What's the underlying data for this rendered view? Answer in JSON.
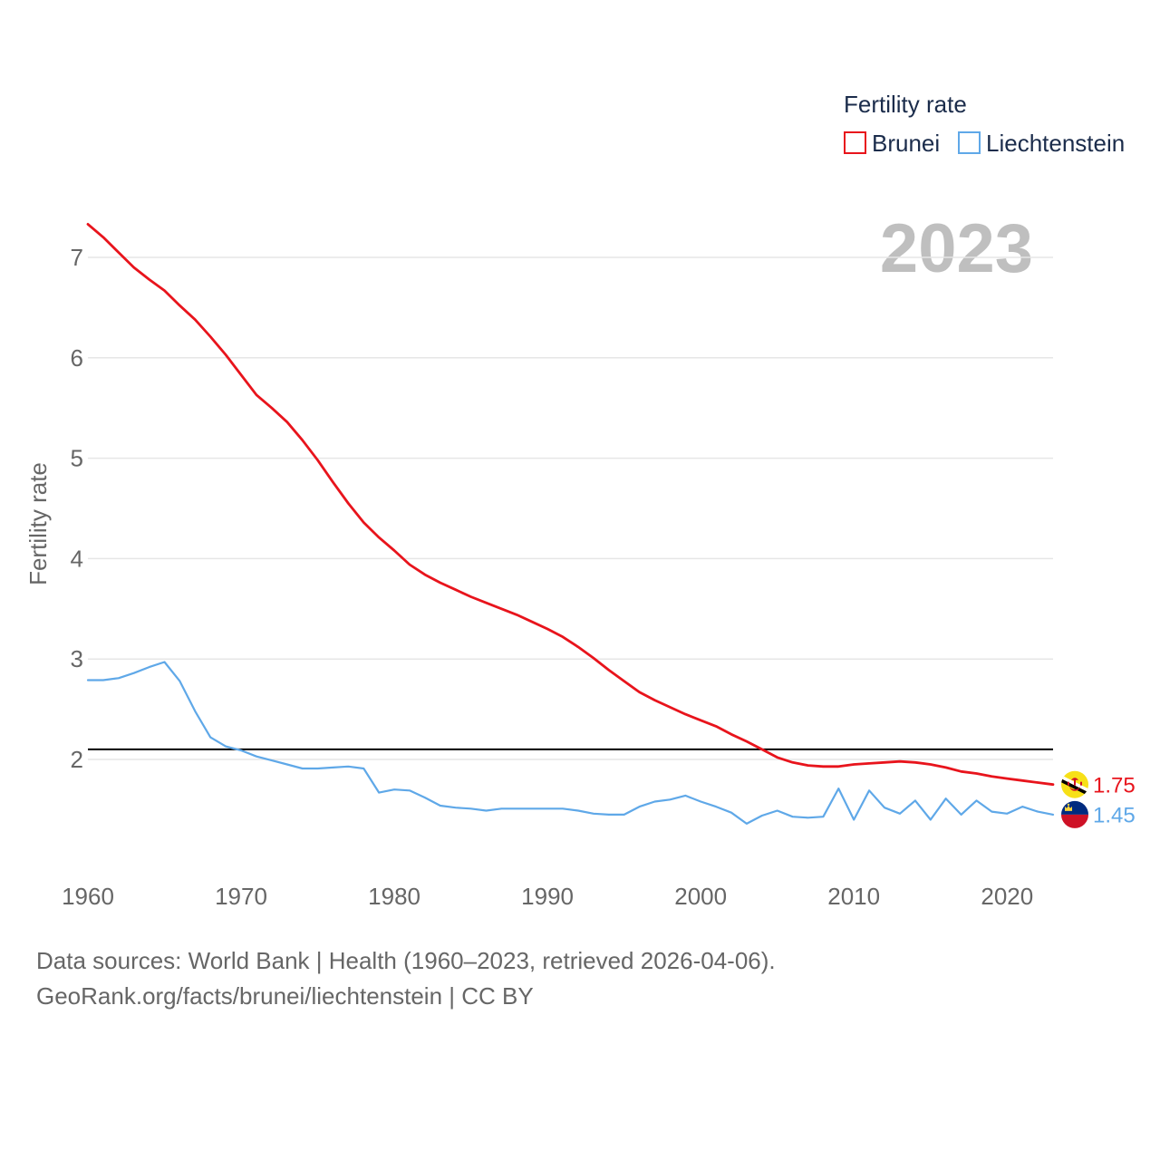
{
  "chart_data": {
    "type": "line",
    "legend_title": "Fertility rate",
    "ylabel": "Fertility rate",
    "highlight_year": "2023",
    "xlim": [
      1960,
      2023
    ],
    "ylim": [
      1,
      7.5
    ],
    "grid": true,
    "x_ticks": [
      1960,
      1970,
      1980,
      1990,
      2000,
      2010,
      2020
    ],
    "y_ticks": [
      2,
      3,
      4,
      5,
      6,
      7
    ],
    "x": [
      1960,
      1961,
      1962,
      1963,
      1964,
      1965,
      1966,
      1967,
      1968,
      1969,
      1970,
      1971,
      1972,
      1973,
      1974,
      1975,
      1976,
      1977,
      1978,
      1979,
      1980,
      1981,
      1982,
      1983,
      1984,
      1985,
      1986,
      1987,
      1988,
      1989,
      1990,
      1991,
      1992,
      1993,
      1994,
      1995,
      1996,
      1997,
      1998,
      1999,
      2000,
      2001,
      2002,
      2003,
      2004,
      2005,
      2006,
      2007,
      2008,
      2009,
      2010,
      2011,
      2012,
      2013,
      2014,
      2015,
      2016,
      2017,
      2018,
      2019,
      2020,
      2021,
      2022,
      2023
    ],
    "series": [
      {
        "name": "Brunei",
        "color": "#e8141c",
        "flag_icon": "brunei-flag-icon",
        "end_label": "1.75",
        "values": [
          7.33,
          7.2,
          7.05,
          6.9,
          6.78,
          6.67,
          6.52,
          6.38,
          6.21,
          6.03,
          5.83,
          5.63,
          5.5,
          5.36,
          5.18,
          4.98,
          4.76,
          4.55,
          4.36,
          4.21,
          4.08,
          3.94,
          3.84,
          3.76,
          3.69,
          3.62,
          3.56,
          3.5,
          3.44,
          3.37,
          3.3,
          3.22,
          3.12,
          3.01,
          2.89,
          2.78,
          2.67,
          2.59,
          2.52,
          2.45,
          2.39,
          2.33,
          2.25,
          2.18,
          2.1,
          2.02,
          1.97,
          1.94,
          1.93,
          1.93,
          1.95,
          1.96,
          1.97,
          1.98,
          1.97,
          1.95,
          1.92,
          1.88,
          1.86,
          1.83,
          1.81,
          1.79,
          1.77,
          1.75
        ]
      },
      {
        "name": "Liechtenstein",
        "color": "#5fa8e8",
        "flag_icon": "liechtenstein-flag-icon",
        "end_label": "1.45",
        "values": [
          2.79,
          2.79,
          2.81,
          2.86,
          2.92,
          2.97,
          2.78,
          2.48,
          2.22,
          2.13,
          2.09,
          2.03,
          1.99,
          1.95,
          1.91,
          1.91,
          1.92,
          1.93,
          1.91,
          1.67,
          1.7,
          1.69,
          1.62,
          1.54,
          1.52,
          1.51,
          1.49,
          1.51,
          1.51,
          1.51,
          1.51,
          1.51,
          1.49,
          1.46,
          1.45,
          1.45,
          1.53,
          1.58,
          1.6,
          1.64,
          1.58,
          1.53,
          1.47,
          1.36,
          1.44,
          1.49,
          1.43,
          1.42,
          1.43,
          1.71,
          1.4,
          1.69,
          1.52,
          1.46,
          1.59,
          1.4,
          1.61,
          1.45,
          1.59,
          1.48,
          1.46,
          1.53,
          1.48,
          1.45
        ]
      }
    ],
    "reference_line": {
      "value": 2.1,
      "color": "#000000"
    }
  },
  "footer": {
    "source": "Data sources: World Bank | Health (1960–2023, retrieved 2026-04-06).",
    "credit": "GeoRank.org/facts/brunei/liechtenstein | CC BY"
  }
}
